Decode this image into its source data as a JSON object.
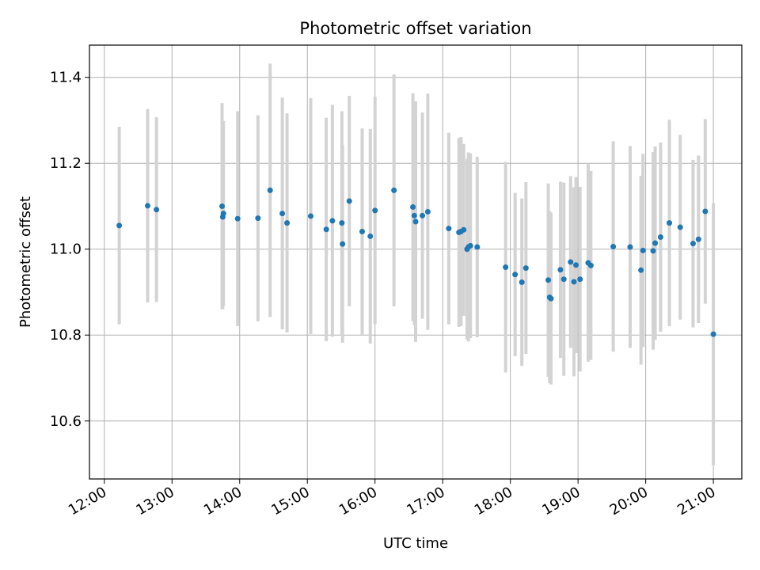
{
  "chart_data": {
    "type": "scatter",
    "title": "Photometric offset variation",
    "xlabel": "UTC time",
    "ylabel": "Photometric offset",
    "x_unit": "hours (UTC)",
    "xlim": [
      11.78,
      21.42
    ],
    "ylim": [
      10.465,
      11.475
    ],
    "grid": true,
    "x_ticks": [
      12,
      13,
      14,
      15,
      16,
      17,
      18,
      19,
      20,
      21
    ],
    "x_tick_labels": [
      "12:00",
      "13:00",
      "14:00",
      "15:00",
      "16:00",
      "17:00",
      "18:00",
      "19:00",
      "20:00",
      "21:00"
    ],
    "y_ticks": [
      10.6,
      10.8,
      11.0,
      11.2,
      11.4
    ],
    "y_tick_labels": [
      "10.6",
      "10.8",
      "11.0",
      "11.2",
      "11.4"
    ],
    "marker_color": "#1f77b4",
    "errorbar_color": "#d3d3d3",
    "series": [
      {
        "x": [
          12.22,
          12.64,
          12.77,
          13.74,
          13.75,
          13.76,
          13.97,
          14.27,
          14.45,
          14.63,
          14.7,
          15.05,
          15.28,
          15.37,
          15.51,
          15.52,
          15.62,
          15.81,
          15.93,
          16.0,
          16.28,
          16.56,
          16.58,
          16.6,
          16.7,
          16.78,
          17.09,
          17.24,
          17.27,
          17.31,
          17.36,
          17.38,
          17.41,
          17.51,
          17.93,
          18.07,
          18.17,
          18.23,
          18.56,
          18.58,
          18.6,
          18.74,
          18.79,
          18.89,
          18.94,
          18.97,
          19.03,
          19.15,
          19.19,
          19.52,
          19.77,
          19.93,
          19.96,
          20.11,
          20.14,
          20.22,
          20.35,
          20.51,
          20.7,
          20.78,
          20.88,
          21.0
        ],
        "y": [
          11.055,
          11.101,
          11.092,
          11.1,
          11.075,
          11.083,
          11.071,
          11.072,
          11.137,
          11.083,
          11.061,
          11.077,
          11.046,
          11.066,
          11.061,
          11.012,
          11.112,
          11.041,
          11.03,
          11.09,
          11.137,
          11.098,
          11.078,
          11.064,
          11.078,
          11.087,
          11.048,
          11.039,
          11.041,
          11.045,
          11.0,
          11.005,
          11.008,
          11.005,
          10.958,
          10.941,
          10.923,
          10.956,
          10.928,
          10.888,
          10.885,
          10.952,
          10.93,
          10.97,
          10.924,
          10.963,
          10.93,
          10.968,
          10.962,
          11.006,
          11.005,
          10.951,
          10.997,
          10.996,
          11.014,
          11.028,
          11.061,
          11.051,
          11.013,
          11.023,
          11.088,
          10.802
        ],
        "err": [
          0.23,
          0.225,
          0.215,
          0.24,
          0.215,
          0.215,
          0.25,
          0.24,
          0.295,
          0.27,
          0.255,
          0.275,
          0.26,
          0.27,
          0.26,
          0.23,
          0.245,
          0.24,
          0.25,
          0.265,
          0.27,
          0.265,
          0.255,
          0.28,
          0.24,
          0.275,
          0.223,
          0.22,
          0.22,
          0.2,
          0.21,
          0.22,
          0.215,
          0.21,
          0.245,
          0.19,
          0.195,
          0.2,
          0.225,
          0.2,
          0.2,
          0.205,
          0.225,
          0.2,
          0.22,
          0.205,
          0.215,
          0.23,
          0.22,
          0.245,
          0.235,
          0.22,
          0.225,
          0.23,
          0.225,
          0.22,
          0.24,
          0.215,
          0.195,
          0.195,
          0.215,
          0.305
        ]
      }
    ]
  }
}
